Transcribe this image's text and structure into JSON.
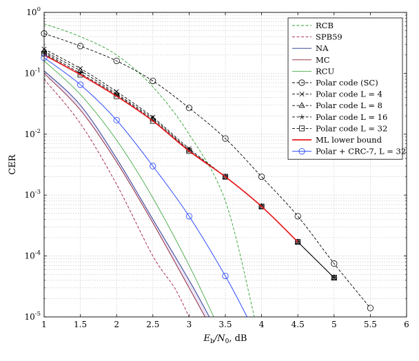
{
  "chart_data": {
    "type": "line",
    "xlabel": "E_b/N_0, dB",
    "ylabel": "CER",
    "xlim": [
      1,
      6
    ],
    "ylim": [
      1e-05,
      1
    ],
    "yscale": "log",
    "grid": true,
    "legend_position": "top-right",
    "x_ticks": [
      "1",
      "1.5",
      "2",
      "2.5",
      "3",
      "3.5",
      "4",
      "4.5",
      "5",
      "5.5",
      "6"
    ],
    "y_ticks": [
      {
        "base": "10",
        "exp": "-5"
      },
      {
        "base": "10",
        "exp": "-4"
      },
      {
        "base": "10",
        "exp": "-3"
      },
      {
        "base": "10",
        "exp": "-2"
      },
      {
        "base": "10",
        "exp": "-1"
      },
      {
        "base": "10",
        "exp": "0"
      }
    ],
    "series": [
      {
        "name": "RCB",
        "color": "#2ca02c",
        "dash": "dashed",
        "marker": "none",
        "x": [
          1.0,
          1.5,
          2.0,
          2.5,
          3.0,
          3.5,
          3.9
        ],
        "y": [
          0.65,
          0.4,
          0.2,
          0.06,
          0.01,
          0.0008,
          1e-05
        ]
      },
      {
        "name": "SPB59",
        "color": "#a01c3c",
        "dash": "dashed",
        "marker": "none",
        "x": [
          1.0,
          1.5,
          2.0,
          2.5,
          2.8,
          3.0
        ],
        "y": [
          0.08,
          0.015,
          0.0015,
          0.0001,
          3e-05,
          1e-05
        ]
      },
      {
        "name": "NA",
        "color": "#1f2d8a",
        "dash": "solid",
        "marker": "none",
        "x": [
          1.0,
          1.5,
          2.0,
          2.5,
          3.0,
          3.28
        ],
        "y": [
          0.11,
          0.03,
          0.004,
          0.0004,
          4e-05,
          1e-05
        ]
      },
      {
        "name": "MC",
        "color": "#8c1a2e",
        "dash": "solid",
        "marker": "none",
        "x": [
          1.0,
          1.5,
          2.0,
          2.5,
          3.0,
          3.22
        ],
        "y": [
          0.1,
          0.025,
          0.0035,
          0.00035,
          3e-05,
          1e-05
        ]
      },
      {
        "name": "RCU",
        "color": "#44aa44",
        "dash": "solid",
        "marker": "none",
        "x": [
          1.0,
          1.5,
          2.0,
          2.5,
          3.0,
          3.34
        ],
        "y": [
          0.16,
          0.045,
          0.008,
          0.0009,
          7e-05,
          1e-05
        ]
      },
      {
        "name": "Polar code (SC)",
        "color": "#000000",
        "dash": "dashed",
        "marker": "circle",
        "x": [
          1.0,
          1.5,
          2.0,
          2.5,
          3.0,
          3.5,
          4.0,
          4.5,
          5.0,
          5.5
        ],
        "y": [
          0.45,
          0.28,
          0.16,
          0.075,
          0.027,
          0.0085,
          0.002,
          0.00045,
          7.5e-05,
          1.4e-05
        ]
      },
      {
        "name": "Polar code L = 4",
        "color": "#000000",
        "dash": "dashed",
        "marker": "x",
        "x": [
          1.0,
          1.5,
          2.0,
          2.5,
          3.0,
          3.5,
          4.0,
          4.5,
          5.0
        ],
        "y": [
          0.25,
          0.12,
          0.05,
          0.019,
          0.0058,
          0.002,
          0.00065,
          0.00017,
          4.4e-05
        ]
      },
      {
        "name": "Polar code L = 8",
        "color": "#000000",
        "dash": "dashed",
        "marker": "triangle",
        "x": [
          1.0,
          1.5,
          2.0,
          2.5,
          3.0,
          3.5,
          4.0,
          4.5,
          5.0
        ],
        "y": [
          0.23,
          0.11,
          0.046,
          0.018,
          0.0055,
          0.002,
          0.00065,
          0.00017,
          4.4e-05
        ]
      },
      {
        "name": "Polar code L = 16",
        "color": "#000000",
        "dash": "dashed",
        "marker": "star",
        "x": [
          1.0,
          1.5,
          2.0,
          2.5,
          3.0,
          3.5,
          4.0,
          4.5,
          5.0
        ],
        "y": [
          0.22,
          0.1,
          0.044,
          0.017,
          0.0054,
          0.002,
          0.00065,
          0.00017,
          4.4e-05
        ]
      },
      {
        "name": "Polar code L = 32",
        "color": "#000000",
        "dash": "dashed",
        "marker": "square",
        "x": [
          1.0,
          1.5,
          2.0,
          2.5,
          3.0,
          3.5,
          4.0,
          4.5,
          5.0
        ],
        "y": [
          0.21,
          0.095,
          0.042,
          0.0165,
          0.0053,
          0.002,
          0.00065,
          0.00017,
          4.4e-05
        ]
      },
      {
        "name": "ML lower bound",
        "color": "#e8191c",
        "dash": "solid",
        "marker": "none",
        "x": [
          1.0,
          1.5,
          2.0,
          2.5,
          3.0,
          3.5,
          4.0,
          4.5
        ],
        "y": [
          0.2,
          0.095,
          0.042,
          0.0165,
          0.0053,
          0.002,
          0.00065,
          0.00017
        ]
      },
      {
        "name": "Polar + CRC-7, L = 32",
        "color": "#1a3cff",
        "dash": "solid",
        "marker": "circle",
        "x": [
          1.0,
          1.5,
          2.0,
          2.5,
          3.0,
          3.5,
          3.8
        ],
        "y": [
          0.18,
          0.065,
          0.017,
          0.003,
          0.00045,
          4.7e-05,
          1e-05
        ]
      }
    ],
    "legend": [
      {
        "label": "RCB",
        "series": 0
      },
      {
        "label": "SPB59",
        "series": 1
      },
      {
        "label": "NA",
        "series": 2
      },
      {
        "label": "MC",
        "series": 3
      },
      {
        "label": "RCU",
        "series": 4
      },
      {
        "label": "Polar code (SC)",
        "series": 5
      },
      {
        "label": "Polar code L = 4",
        "series": 6
      },
      {
        "label": "Polar code L = 8",
        "series": 7
      },
      {
        "label": "Polar code L = 16",
        "series": 8
      },
      {
        "label": "Polar code L = 32",
        "series": 9
      },
      {
        "label": "ML lower bound",
        "series": 10
      },
      {
        "label": "Polar + CRC-7, L = 32",
        "series": 11
      }
    ],
    "shaded_band": {
      "between": [
        "MC",
        "NA"
      ],
      "color": "#d8d0ec"
    },
    "thin_tail": {
      "color": "#000000",
      "x": [
        4.5,
        5.0
      ],
      "y": [
        0.00017,
        4.4e-05
      ]
    }
  }
}
